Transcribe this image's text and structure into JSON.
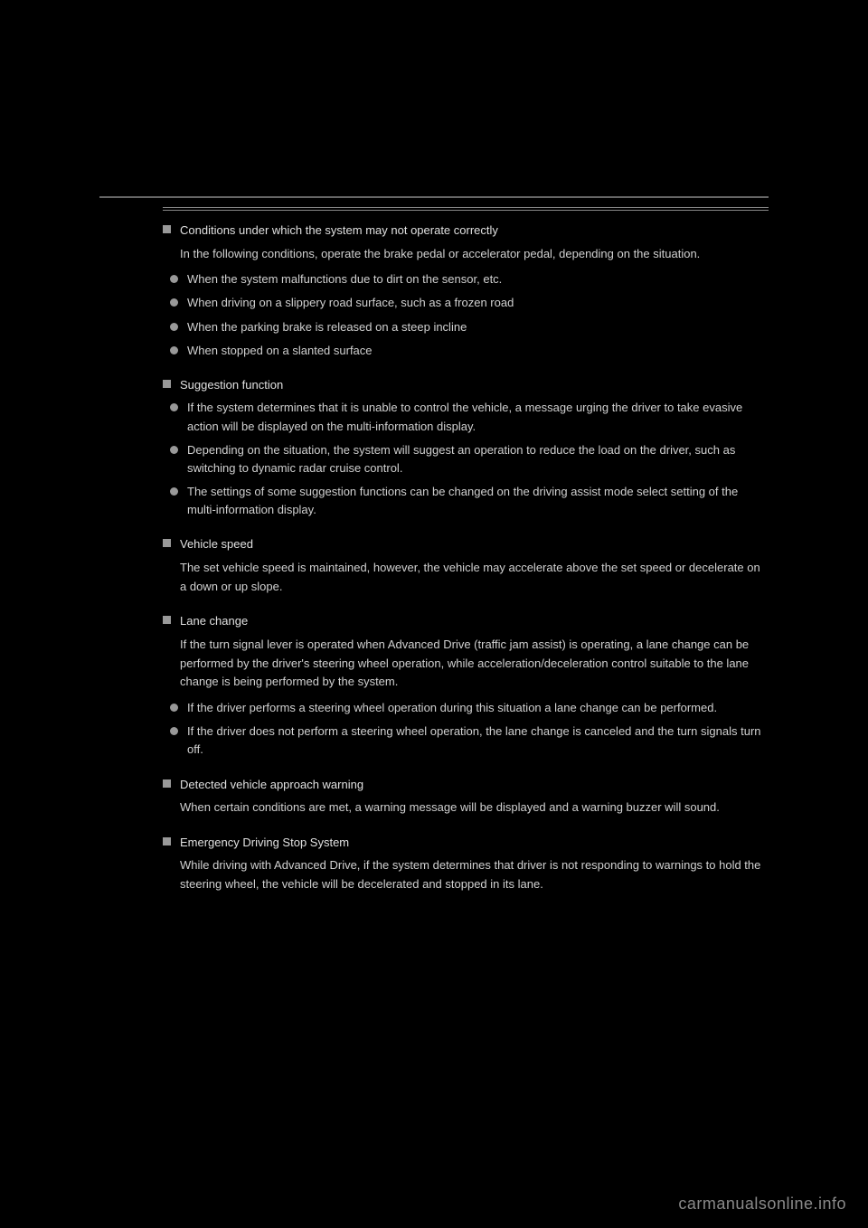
{
  "page": {
    "background": "#000000",
    "text_color": "#d0d0d0",
    "accent_color": "#999999",
    "divider_color": "#666666"
  },
  "sections": [
    {
      "title": "Conditions under which the system may not operate correctly",
      "body": "In the following conditions, operate the brake pedal or accelerator pedal, depending on the situation.",
      "bullets": [
        "When the system malfunctions due to dirt on the sensor, etc.",
        "When driving on a slippery road surface, such as a frozen road",
        "When the parking brake is released on a steep incline",
        "When stopped on a slanted surface"
      ]
    },
    {
      "title": "Suggestion function",
      "bullets": [
        "If the system determines that it is unable to control the vehicle, a message urging the driver to take evasive action will be displayed on the multi-information display.",
        "Depending on the situation, the system will suggest an operation to reduce the load on the driver, such as switching to dynamic radar cruise control.",
        "The settings of some suggestion functions can be changed on the driving assist mode select setting of the multi-information display."
      ]
    },
    {
      "title": "Vehicle speed",
      "body": "The set vehicle speed is maintained, however, the vehicle may accelerate above the set speed or decelerate on a down or up slope."
    },
    {
      "title": "Lane change",
      "body": "If the turn signal lever is operated when Advanced Drive (traffic jam assist) is operating, a lane change can be performed by the driver's steering wheel operation, while acceleration/deceleration control suitable to the lane change is being performed by the system.",
      "bullets": [
        "If the driver performs a steering wheel operation during this situation a lane change can be performed.",
        "If the driver does not perform a steering wheel operation, the lane change is canceled and the turn signals turn off."
      ]
    },
    {
      "title": "Detected vehicle approach warning",
      "body": "When certain conditions are met, a warning message will be displayed and a warning buzzer will sound."
    },
    {
      "title": "Emergency Driving Stop System",
      "body": "While driving with Advanced Drive, if the system determines that driver is not responding to warnings to hold the steering wheel, the vehicle will be decelerated and stopped in its lane."
    }
  ],
  "footer": {
    "watermark": "carmanualsonline.info"
  }
}
